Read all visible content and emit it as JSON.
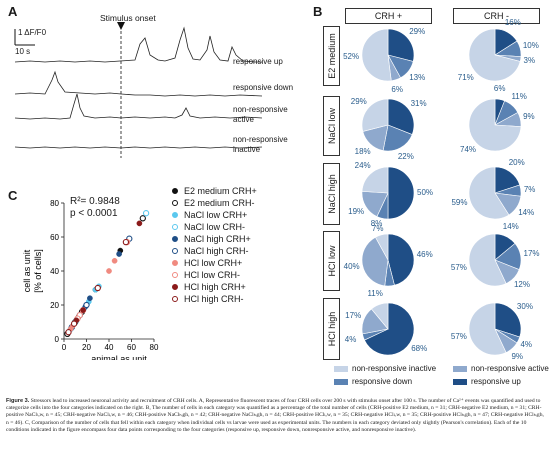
{
  "panel_a": {
    "letter": "A",
    "scale_label": "1 ΔF/F0",
    "time_label": "10 s",
    "stimulus_label": "Stimulus onset",
    "trace_labels": [
      "responsive up",
      "responsive down",
      "non-responsive active",
      "non-responsive inactive"
    ]
  },
  "panel_b": {
    "letter": "B",
    "columns": [
      "CRH +",
      "CRH -"
    ],
    "rows": [
      "E2 medium",
      "NaCl low",
      "NaCl high",
      "HCl low",
      "HCl high"
    ],
    "colors": {
      "non_responsive_inactive": "#c6d4e7",
      "non_responsive_active": "#8fa9cd",
      "responsive_down": "#5a82b3",
      "responsive_up": "#1f4e86"
    },
    "legend": [
      "non-responsive inactive",
      "non-responsive active",
      "responsive down",
      "responsive up"
    ],
    "pies": [
      {
        "row": "E2 medium",
        "col": "CRH +",
        "up": 29,
        "down": 13,
        "active": 6,
        "inactive": 52,
        "labels": {
          "up": "29%",
          "down": "13%",
          "active": "6%",
          "inactive": "52%"
        }
      },
      {
        "row": "E2 medium",
        "col": "CRH -",
        "up": 16,
        "down": 10,
        "active": 3,
        "inactive": 71,
        "labels": {
          "up": "16%",
          "down": "10%",
          "active": "3%",
          "inactive": "71%"
        }
      },
      {
        "row": "NaCl low",
        "col": "CRH +",
        "up": 31,
        "down": 22,
        "active": 18,
        "inactive": 29,
        "labels": {
          "up": "31%",
          "down": "22%",
          "active": "18%",
          "inactive": "29%"
        }
      },
      {
        "row": "NaCl low",
        "col": "CRH -",
        "up": 6,
        "down": 11,
        "active": 9,
        "inactive": 74,
        "labels": {
          "up": "6%",
          "down": "11%",
          "active": "9%",
          "inactive": "74%"
        }
      },
      {
        "row": "NaCl high",
        "col": "CRH +",
        "up": 50,
        "down": 7,
        "active": 19,
        "inactive": 24,
        "labels": {
          "up": "50%",
          "down": "7%",
          "active": "19%",
          "inactive": "24%"
        }
      },
      {
        "row": "NaCl high",
        "col": "CRH -",
        "up": 20,
        "down": 7,
        "active": 14,
        "inactive": 59,
        "labels": {
          "up": "20%",
          "down": "7%",
          "active": "14%",
          "inactive": "59%"
        }
      },
      {
        "row": "HCl low",
        "col": "CRH +",
        "up": 46,
        "down": 6,
        "active": 40,
        "inactive": 8,
        "labels": {
          "up": "46%",
          "down": "",
          "active": "40%",
          "inactive": "8%"
        }
      },
      {
        "row": "HCl low",
        "col": "CRH -",
        "up": 14,
        "down": 17,
        "active": 12,
        "inactive": 57,
        "labels": {
          "up": "14%",
          "down": "17%",
          "active": "12%",
          "inactive": "57%"
        }
      },
      {
        "row": "HCl high",
        "col": "CRH +",
        "up": 68,
        "down": 4,
        "active": 17,
        "inactive": 11,
        "labels": {
          "up": "68%",
          "down": "4%",
          "active": "17%",
          "inactive": "11%"
        }
      },
      {
        "row": "HCl high",
        "col": "CRH -",
        "up": 30,
        "down": 4,
        "active": 9,
        "inactive": 57,
        "labels": {
          "up": "30%",
          "down": "4%",
          "active": "9%",
          "inactive": "57%"
        }
      }
    ]
  },
  "panel_c": {
    "letter": "C",
    "r2_text": "R²= 0.9848",
    "p_text": "p < 0.0001"
  },
  "chart_data": {
    "type": "scatter",
    "xlabel": "animal as unit [% of cells per animal]",
    "ylabel": "cell as unit [% of cells]",
    "xlim": [
      0,
      80
    ],
    "ylim": [
      0,
      80
    ],
    "x_ticks": [
      0,
      20,
      40,
      60,
      80
    ],
    "y_ticks": [
      0,
      20,
      40,
      60,
      80
    ],
    "series": [
      {
        "name": "E2 medium CRH+",
        "color": "#111111",
        "filled": true,
        "points": [
          [
            50,
            52
          ],
          [
            28,
            29
          ],
          [
            13,
            13
          ],
          [
            6,
            6
          ]
        ]
      },
      {
        "name": "E2 medium CRH-",
        "color": "#111111",
        "filled": false,
        "points": [
          [
            70,
            71
          ],
          [
            16,
            16
          ],
          [
            10,
            10
          ],
          [
            3,
            3
          ]
        ]
      },
      {
        "name": "NaCl low CRH+",
        "color": "#5bc8ee",
        "filled": true,
        "points": [
          [
            28,
            29
          ],
          [
            31,
            31
          ],
          [
            22,
            22
          ],
          [
            18,
            18
          ]
        ]
      },
      {
        "name": "NaCl low CRH-",
        "color": "#5bc8ee",
        "filled": false,
        "points": [
          [
            73,
            74
          ],
          [
            6,
            6
          ],
          [
            11,
            11
          ],
          [
            9,
            9
          ]
        ]
      },
      {
        "name": "NaCl high CRH+",
        "color": "#1f4e86",
        "filled": true,
        "points": [
          [
            23,
            24
          ],
          [
            49,
            50
          ],
          [
            7,
            7
          ],
          [
            19,
            19
          ]
        ]
      },
      {
        "name": "NaCl high CRH-",
        "color": "#1f4e86",
        "filled": false,
        "points": [
          [
            58,
            59
          ],
          [
            20,
            20
          ],
          [
            7,
            7
          ],
          [
            14,
            14
          ]
        ]
      },
      {
        "name": "HCl low CRH+",
        "color": "#f08a80",
        "filled": true,
        "points": [
          [
            8,
            8
          ],
          [
            45,
            46
          ],
          [
            6,
            6
          ],
          [
            40,
            40
          ]
        ]
      },
      {
        "name": "HCl low CRH-",
        "color": "#f08a80",
        "filled": false,
        "points": [
          [
            56,
            57
          ],
          [
            14,
            14
          ],
          [
            17,
            17
          ],
          [
            12,
            12
          ]
        ]
      },
      {
        "name": "HCl high CRH+",
        "color": "#8b1a1a",
        "filled": true,
        "points": [
          [
            11,
            11
          ],
          [
            67,
            68
          ],
          [
            4,
            4
          ],
          [
            17,
            17
          ]
        ]
      },
      {
        "name": "HCl high CRH-",
        "color": "#8b1a1a",
        "filled": false,
        "points": [
          [
            55,
            57
          ],
          [
            30,
            30
          ],
          [
            4,
            4
          ],
          [
            9,
            9
          ]
        ]
      }
    ]
  },
  "caption": {
    "label": "Figure 3.",
    "text": "Stressors lead to increased neuronal activity and recruitment of CRH cells. A, Representative fluorescent traces of four CRH cells over 200 s with stimulus onset after 100 s. The number of Ca²⁺ events was quantified and used to categorize cells into the four categories indicated on the right. B, The number of cells in each category was quantified as a percentage of the total number of cells (CRH-positive E2 medium, n = 31; CRH-negative E2 medium, n = 31; CRH-positive NaClₗₒw, n = 45; CRH-negative NaClₗₒw, n = 46; CRH-positive NaClₕᵢgh, n = 42; CRH-negative NaClₕᵢgh, n = 44; CRH-positive HClₗₒw, n = 35; CRH-negative HClₗₒw, n = 35; CRH-positive HClₕᵢgh, n = 47; CRH-negative HClₕᵢgh, n = 46). C, Comparison of the number of cells that fell within each category when individual cells vs larvae were used as experimental units. The numbers in each category deviated only slightly (Pearson's correlation). Each of the 10 conditions indicated in the figure encompass four data points corresponding to the four categories (responsive up, responsive down, nonresponsive active, and nonresponsive inactive)."
  }
}
